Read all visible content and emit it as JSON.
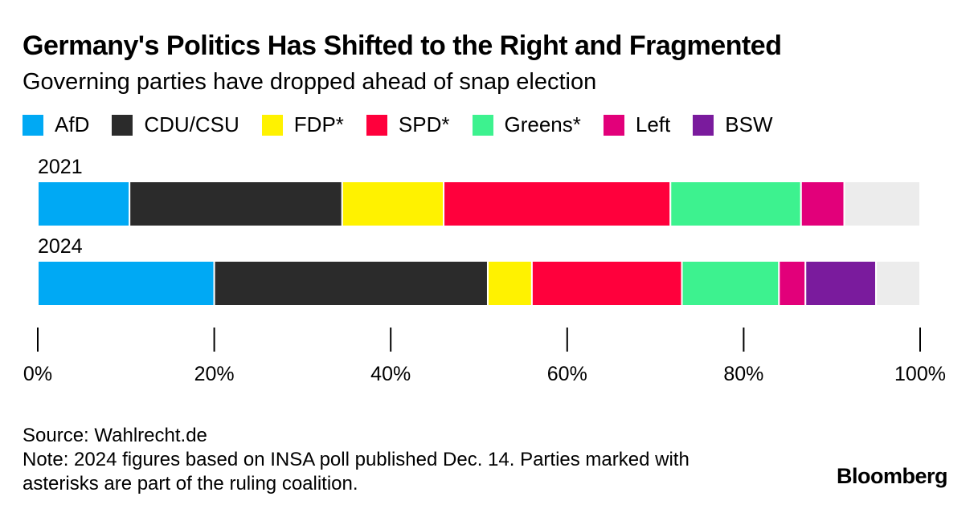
{
  "title": "Germany's Politics Has Shifted to the Right and Fragmented",
  "subtitle": "Governing parties have dropped ahead of snap election",
  "legend": [
    {
      "label": "AfD",
      "color": "#00a9f4"
    },
    {
      "label": "CDU/CSU",
      "color": "#2b2b2b"
    },
    {
      "label": "FDP*",
      "color": "#fff200"
    },
    {
      "label": "SPD*",
      "color": "#ff003c"
    },
    {
      "label": "Greens*",
      "color": "#3df28f"
    },
    {
      "label": "Left",
      "color": "#e2007a"
    },
    {
      "label": "BSW",
      "color": "#7a1b9d"
    }
  ],
  "chart_data": {
    "type": "bar",
    "orientation": "horizontal",
    "stacked": true,
    "categories": [
      "2021",
      "2024"
    ],
    "series": [
      {
        "name": "AfD",
        "color": "#00a9f4",
        "values": [
          10.4,
          20.0
        ]
      },
      {
        "name": "CDU/CSU",
        "color": "#2b2b2b",
        "values": [
          24.1,
          31.0
        ]
      },
      {
        "name": "FDP*",
        "color": "#fff200",
        "values": [
          11.5,
          5.0
        ]
      },
      {
        "name": "SPD*",
        "color": "#ff003c",
        "values": [
          25.7,
          17.0
        ]
      },
      {
        "name": "Greens*",
        "color": "#3df28f",
        "values": [
          14.8,
          11.0
        ]
      },
      {
        "name": "Left",
        "color": "#e2007a",
        "values": [
          4.9,
          3.0
        ]
      },
      {
        "name": "BSW",
        "color": "#7a1b9d",
        "values": [
          0,
          8.0
        ]
      },
      {
        "color": "#ececec",
        "values": [
          8.6,
          5.0
        ]
      }
    ],
    "xlim": [
      0,
      100
    ],
    "xticks": [
      0,
      20,
      40,
      60,
      80,
      100
    ],
    "xtick_labels": [
      "0%",
      "20%",
      "40%",
      "60%",
      "80%",
      "100%"
    ],
    "grid": false
  },
  "footer": {
    "source": "Source: Wahlrecht.de",
    "note_line1": "Note: 2024 figures based on INSA poll published Dec. 14. Parties marked with",
    "note_line2": "asterisks are part of the ruling coalition."
  },
  "brand": "Bloomberg"
}
